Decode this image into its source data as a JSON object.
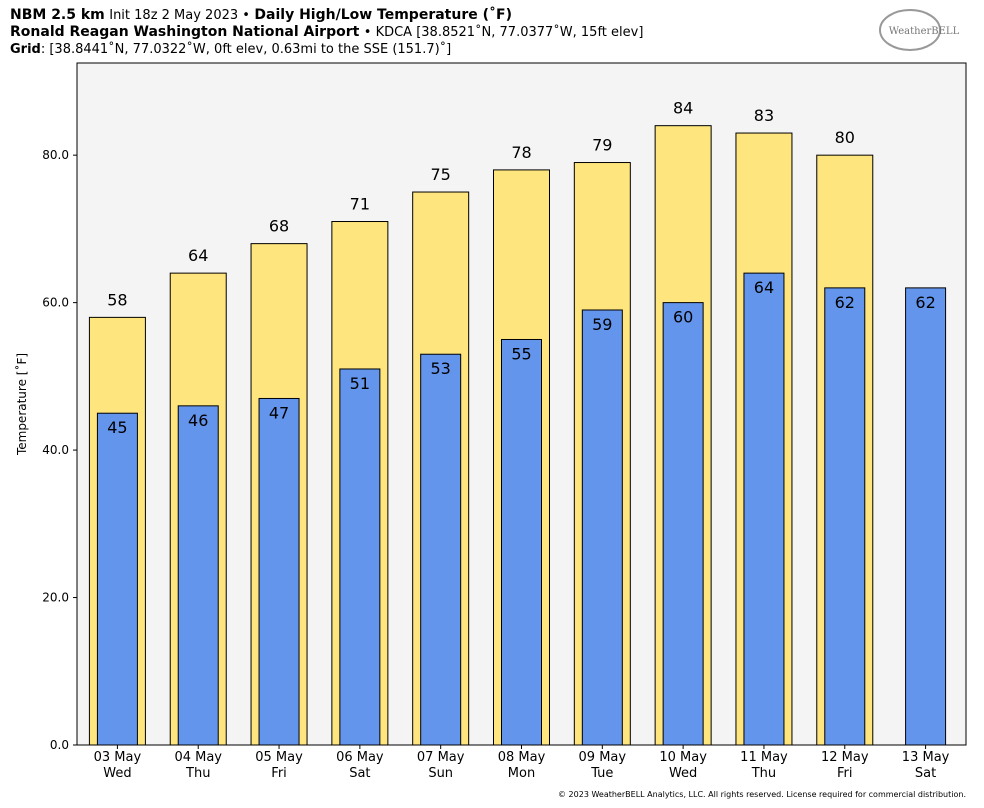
{
  "header": {
    "model": "NBM 2.5 km",
    "init": "Init 18z 2 May 2023 •",
    "product": "Daily High/Low Temperature (˚F)",
    "station_name": "Ronald Reagan Washington National Airport",
    "station_info": "• KDCA [38.8521˚N, 77.0377˚W, 15ft elev]",
    "grid_label": "Grid",
    "grid_info": ": [38.8441˚N, 77.0322˚W, 0ft elev, 0.63mi to the SSE (151.7)˚]",
    "logo": "WeatherBELL",
    "footer": "© 2023 WeatherBELL Analytics, LLC. All rights reserved. License required for commercial distribution."
  },
  "chart_data": {
    "type": "bar",
    "y_label": "Temperature [˚F]",
    "categories": [
      "03 May",
      "04 May",
      "05 May",
      "06 May",
      "07 May",
      "08 May",
      "09 May",
      "10 May",
      "11 May",
      "12 May",
      "13 May"
    ],
    "weekdays": [
      "Wed",
      "Thu",
      "Fri",
      "Sat",
      "Sun",
      "Mon",
      "Tue",
      "Wed",
      "Thu",
      "Fri",
      "Sat"
    ],
    "series": [
      {
        "name": "High",
        "color": "#fee57e",
        "values": [
          58,
          64,
          68,
          71,
          75,
          78,
          79,
          84,
          83,
          80,
          null
        ]
      },
      {
        "name": "Low",
        "color": "#6495ed",
        "values": [
          45,
          46,
          47,
          51,
          53,
          55,
          59,
          60,
          64,
          62,
          62
        ]
      }
    ],
    "ylim": [
      0,
      92.5
    ],
    "yticks": [
      {
        "value": 0,
        "label": "0.0"
      },
      {
        "value": 20,
        "label": "20.0"
      },
      {
        "value": 40,
        "label": "40.0"
      },
      {
        "value": 60,
        "label": "60.0"
      },
      {
        "value": 80,
        "label": "80.0"
      }
    ]
  }
}
